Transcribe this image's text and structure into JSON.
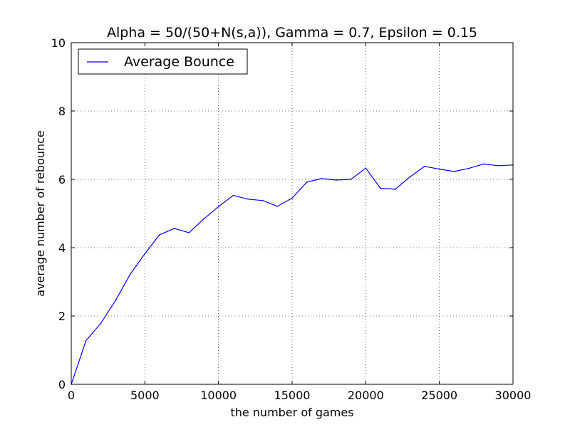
{
  "chart_data": {
    "type": "line",
    "title": "Alpha = 50/(50+N(s,a)), Gamma = 0.7, Epsilon = 0.15",
    "xlabel": "the number of games",
    "ylabel": "average number of rebounce",
    "xlim": [
      0,
      30000
    ],
    "ylim": [
      0,
      10
    ],
    "xticks": [
      0,
      5000,
      10000,
      15000,
      20000,
      25000,
      30000
    ],
    "xtick_labels": [
      "0",
      "5000",
      "10000",
      "15000",
      "20000",
      "25000",
      "30000"
    ],
    "yticks": [
      0,
      2,
      4,
      6,
      8,
      10
    ],
    "ytick_labels": [
      "0",
      "2",
      "4",
      "6",
      "8",
      "10"
    ],
    "grid": true,
    "grid_style": "dotted",
    "legend_position": "top-left",
    "series": [
      {
        "name": "Average Bounce",
        "color": "#0000ff",
        "x": [
          0,
          1000,
          2000,
          3000,
          4000,
          5000,
          6000,
          7000,
          8000,
          9000,
          10000,
          11000,
          12000,
          13000,
          14000,
          15000,
          16000,
          17000,
          18000,
          19000,
          20000,
          21000,
          22000,
          23000,
          24000,
          25000,
          26000,
          27000,
          28000,
          29000,
          30000
        ],
        "y": [
          0,
          1.28,
          1.78,
          2.45,
          3.22,
          3.82,
          4.38,
          4.56,
          4.44,
          4.84,
          5.2,
          5.53,
          5.42,
          5.38,
          5.21,
          5.45,
          5.92,
          6.02,
          5.98,
          6.0,
          6.33,
          5.74,
          5.71,
          6.07,
          6.38,
          6.3,
          6.23,
          6.32,
          6.45,
          6.4,
          6.42
        ]
      }
    ]
  }
}
